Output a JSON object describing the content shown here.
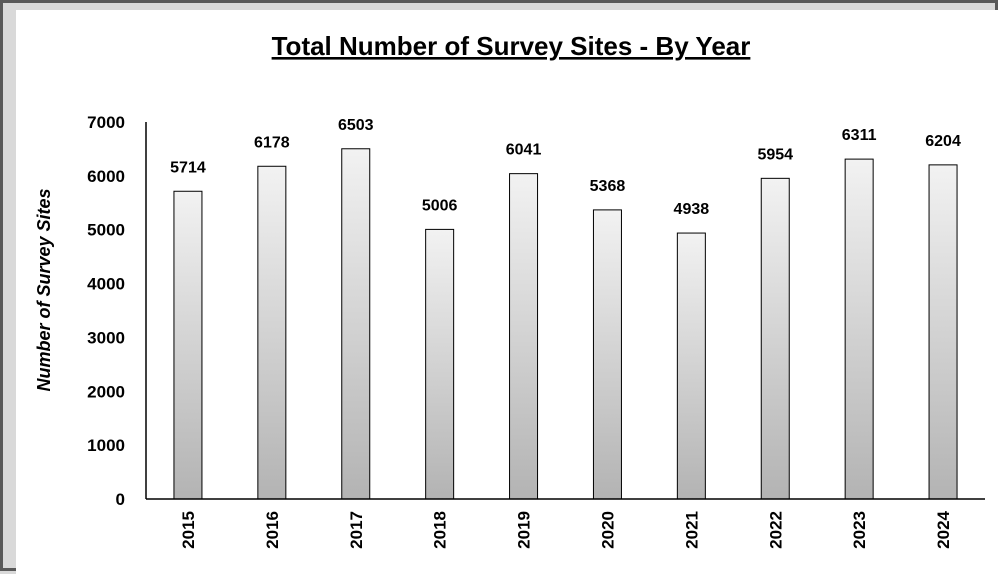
{
  "chart_data": {
    "type": "bar",
    "title": "Total Number of Survey Sites - By Year",
    "xlabel": "",
    "ylabel": "Number of Survey Sites",
    "categories": [
      "2015",
      "2016",
      "2017",
      "2018",
      "2019",
      "2020",
      "2021",
      "2022",
      "2023",
      "2024"
    ],
    "values": [
      5714,
      6178,
      6503,
      5006,
      6041,
      5368,
      4938,
      5954,
      6311,
      6204
    ],
    "ylim": [
      0,
      7000
    ],
    "yticks": [
      0,
      1000,
      2000,
      3000,
      4000,
      5000,
      6000,
      7000
    ],
    "grid": false,
    "legend": "none",
    "bar_gradient": [
      "#f2f2f2",
      "#b3b3b3"
    ],
    "bar_stroke": "#000000",
    "background": "#ffffff",
    "frame_color": "#d9d9d9"
  }
}
